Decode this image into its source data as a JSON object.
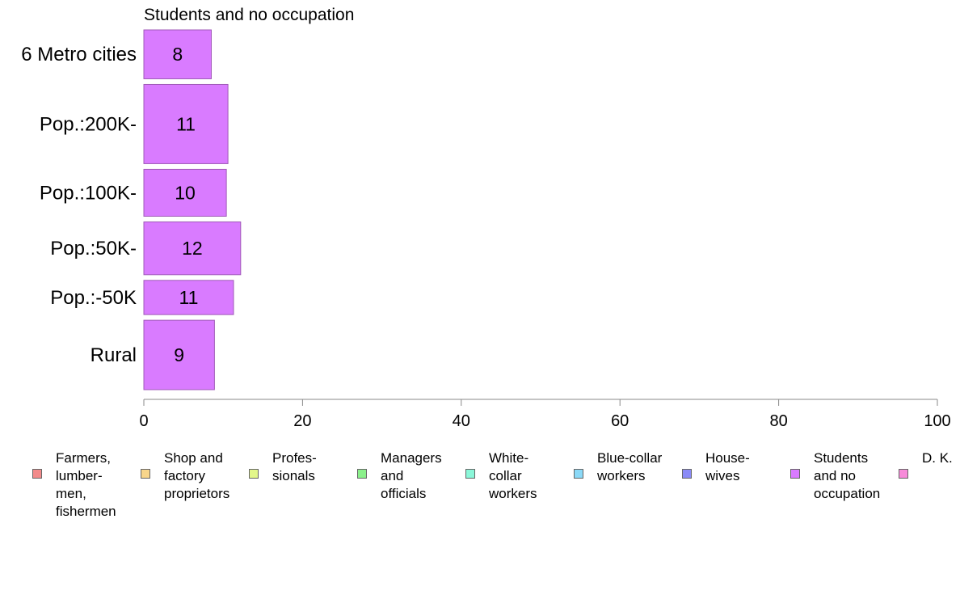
{
  "chart_data": {
    "type": "bar",
    "title": "Students and no occupation",
    "categories": [
      "6 Metro cities",
      "Pop.:200K-",
      "Pop.:100K-",
      "Pop.:50K-",
      "Pop.:-50K",
      "Rural"
    ],
    "values": [
      8,
      11,
      10,
      12,
      11,
      9
    ],
    "bar_values": [
      8.5,
      10.6,
      10.4,
      12.2,
      11.3,
      8.9
    ],
    "relative_bar_heights": [
      1.0,
      1.62,
      0.96,
      1.08,
      0.7,
      1.42
    ],
    "xlim": [
      0,
      100
    ],
    "x_ticks": [
      "0",
      "20",
      "40",
      "60",
      "80",
      "100"
    ],
    "bar_color": "#d97bff",
    "bar_stroke": "#a05ab8",
    "grid": false,
    "legend_position": "bottom",
    "legend": [
      {
        "label": "Farmers,\nlumber-\nmen,\nfishermen",
        "color": "#f28b8b"
      },
      {
        "label": "Shop and\nfactory\nproprietors",
        "color": "#f7d58b"
      },
      {
        "label": "Profes-\nsionals",
        "color": "#e3f78b"
      },
      {
        "label": "Managers\nand\nofficials",
        "color": "#8bf08b"
      },
      {
        "label": "White-\ncollar\nworkers",
        "color": "#8bf7d9"
      },
      {
        "label": "Blue-collar\nworkers",
        "color": "#8bd9f7"
      },
      {
        "label": "House-\nwives",
        "color": "#8b8bf7"
      },
      {
        "label": "Students\nand no\noccupation",
        "color": "#d97bff"
      },
      {
        "label": "D. K.",
        "color": "#f78bd9"
      }
    ]
  }
}
